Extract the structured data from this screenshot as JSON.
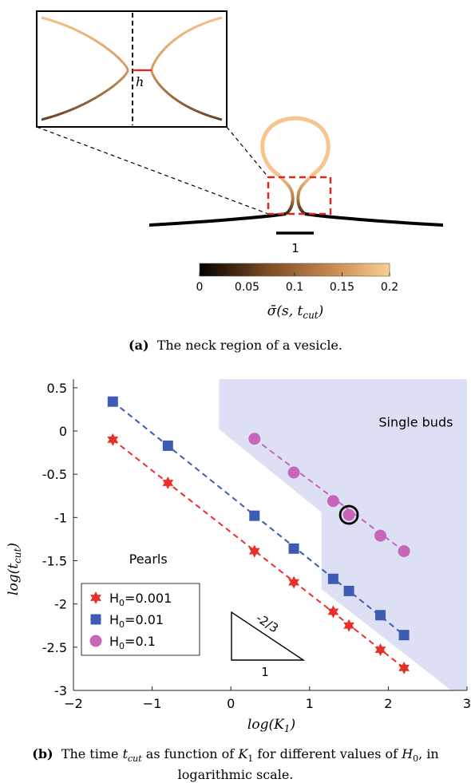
{
  "panel_a": {
    "inset_label": "h",
    "scale_label": "1",
    "colorbar": {
      "ticks": [
        "0",
        "0.05",
        "0.1",
        "0.15",
        "0.2"
      ],
      "tick_values": [
        0,
        0.05,
        0.1,
        0.15,
        0.2
      ],
      "range": [
        0,
        0.2
      ],
      "label": "σ̄(s, t",
      "label_sub": "cut",
      "label_close": ")",
      "colors": [
        "#000000",
        "#7a4a22",
        "#c98a50",
        "#f8cf93"
      ]
    },
    "caption_tag": "(a)",
    "caption_text": "The neck region of a vesicle."
  },
  "chart_data": {
    "type": "scatter",
    "xlabel_main": "log(K",
    "xlabel_sub": "1",
    "xlabel_close": ")",
    "ylabel_main": "log(t",
    "ylabel_sub": "cut",
    "ylabel_close": ")",
    "xlim": [
      -2,
      3
    ],
    "ylim": [
      -3,
      0.6
    ],
    "xticks": [
      -2,
      -1,
      0,
      1,
      2,
      3
    ],
    "xtick_labels": [
      "−2",
      "−1",
      "0",
      "1",
      "2",
      "3"
    ],
    "yticks": [
      0.5,
      0,
      -0.5,
      -1,
      -1.5,
      -2,
      -2.5,
      -3
    ],
    "ytick_labels": [
      "0.5",
      "0",
      "-0.5",
      "-1",
      "-1.5",
      "-2",
      "-2.5",
      "-3"
    ],
    "grid": false,
    "legend_position": "bottom-left",
    "series": [
      {
        "name": "H",
        "name_sub": "0",
        "name_rest": "=0.001",
        "marker": "star",
        "color": "#e8302a",
        "x": [
          -1.5,
          -0.8,
          0.3,
          0.8,
          1.3,
          1.5,
          1.9,
          2.2
        ],
        "y": [
          -0.1,
          -0.6,
          -1.39,
          -1.75,
          -2.09,
          -2.25,
          -2.53,
          -2.74
        ]
      },
      {
        "name": "H",
        "name_sub": "0",
        "name_rest": "=0.01",
        "marker": "square",
        "color": "#3e5bb4",
        "x": [
          -1.5,
          -0.8,
          0.3,
          0.8,
          1.3,
          1.5,
          1.9,
          2.2
        ],
        "y": [
          0.34,
          -0.17,
          -0.98,
          -1.36,
          -1.71,
          -1.85,
          -2.13,
          -2.36
        ]
      },
      {
        "name": "H",
        "name_sub": "0",
        "name_rest": "=0.1",
        "marker": "circle",
        "color": "#c766b9",
        "x": [
          0.3,
          0.8,
          1.3,
          1.5,
          1.9,
          2.2
        ],
        "y": [
          -0.09,
          -0.48,
          -0.81,
          -0.97,
          -1.21,
          -1.39
        ]
      }
    ],
    "fit_lines": [
      {
        "color": "#e8302a",
        "from": [
          -1.5,
          -0.1
        ],
        "to": [
          2.2,
          -2.74
        ]
      },
      {
        "color": "#3e5bb4",
        "from": [
          -1.5,
          0.34
        ],
        "to": [
          2.2,
          -2.36
        ]
      },
      {
        "color": "#c766b9",
        "from": [
          0.3,
          -0.09
        ],
        "to": [
          2.2,
          -1.39
        ]
      }
    ],
    "highlighted_point": {
      "x": 1.5,
      "y": -0.97
    },
    "regions": [
      {
        "label": "Single buds",
        "label_x": 2.35,
        "label_y": 0.05,
        "color": "#dde0f5",
        "polygon": [
          [
            -0.15,
            0.6
          ],
          [
            3.0,
            0.6
          ],
          [
            3.0,
            -3.0
          ],
          [
            2.8,
            -3.0
          ],
          [
            1.15,
            -1.83
          ],
          [
            1.15,
            -0.94
          ],
          [
            -0.15,
            0.02
          ]
        ]
      },
      {
        "label": "Pearls",
        "label_x": -1.05,
        "label_y": -1.53
      }
    ],
    "slope_triangle": {
      "slope_label": "-2/3",
      "base_label": "1"
    }
  },
  "caption_b": {
    "tag": "(b)",
    "text_1": "The time ",
    "t_main": "t",
    "t_sub": "cut",
    "text_2": " as function of ",
    "k_main": "K",
    "k_sub": "1",
    "text_3": " for different values of ",
    "h_main": "H",
    "h_sub": "0",
    "text_4": ", in",
    "line2": "logarithmic scale."
  }
}
